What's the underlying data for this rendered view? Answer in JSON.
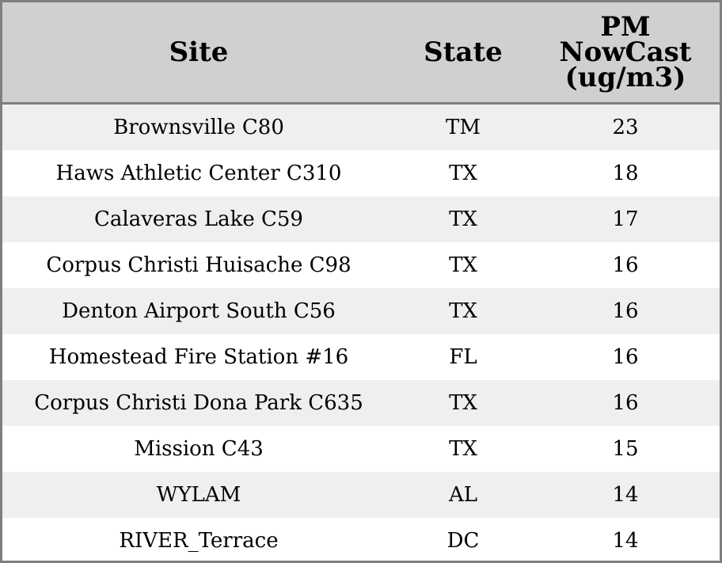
{
  "chart_data": {
    "type": "table",
    "columns": [
      "Site",
      "State",
      "PM NowCast (ug/m3)"
    ],
    "header_lines": {
      "site": [
        "Site"
      ],
      "state": [
        "State"
      ],
      "pm": [
        "PM",
        "NowCast",
        "(ug/m3)"
      ]
    },
    "rows": [
      {
        "site": "Brownsville C80",
        "state": "TM",
        "pm": "23"
      },
      {
        "site": "Haws Athletic Center C310",
        "state": "TX",
        "pm": "18"
      },
      {
        "site": "Calaveras Lake C59",
        "state": "TX",
        "pm": "17"
      },
      {
        "site": "Corpus Christi Huisache C98",
        "state": "TX",
        "pm": "16"
      },
      {
        "site": "Denton Airport South C56",
        "state": "TX",
        "pm": "16"
      },
      {
        "site": "Homestead Fire Station #16",
        "state": "FL",
        "pm": "16"
      },
      {
        "site": "Corpus Christi Dona Park C635",
        "state": "TX",
        "pm": "16"
      },
      {
        "site": "Mission C43",
        "state": "TX",
        "pm": "15"
      },
      {
        "site": "WYLAM",
        "state": "AL",
        "pm": "14"
      },
      {
        "site": "RIVER_Terrace",
        "state": "DC",
        "pm": "14"
      }
    ]
  },
  "colors": {
    "header_bg": "#d0d0d0",
    "row_alt": "#efefef",
    "row_plain": "#ffffff",
    "border": "#7f7f7f"
  }
}
